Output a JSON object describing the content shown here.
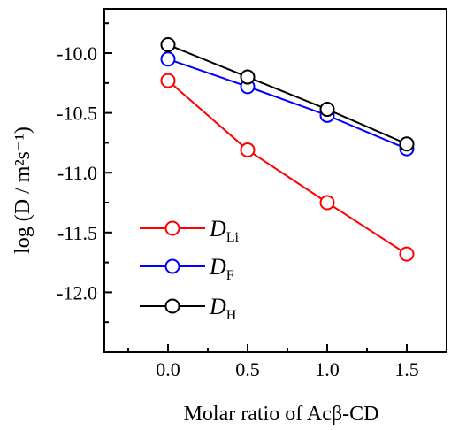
{
  "chart_data": {
    "type": "line",
    "title": "",
    "xlabel": "Molar ratio of Acβ-CD",
    "ylabel": "log (D / m²s⁻¹)",
    "xlim": [
      -0.4,
      1.75
    ],
    "ylim": [
      -12.5,
      -9.63
    ],
    "x_ticks": [
      "0.0",
      "0.5",
      "1.0",
      "1.5"
    ],
    "y_ticks": [
      "-10.0",
      "-10.5",
      "-11.0",
      "-11.5",
      "-12.0"
    ],
    "x": [
      0.0,
      0.5,
      1.0,
      1.5
    ],
    "series": [
      {
        "name": "D_Li",
        "label_main": "D",
        "label_sub": "Li",
        "color": "#ff0000",
        "values": [
          -10.23,
          -10.81,
          -11.25,
          -11.68
        ]
      },
      {
        "name": "D_F",
        "label_main": "D",
        "label_sub": "F",
        "color": "#0000ff",
        "values": [
          -10.05,
          -10.28,
          -10.52,
          -10.8
        ]
      },
      {
        "name": "D_H",
        "label_main": "D",
        "label_sub": "H",
        "color": "#000000",
        "values": [
          -9.93,
          -10.2,
          -10.47,
          -10.76
        ]
      }
    ],
    "legend_position": "bottom-left",
    "grid": false,
    "marker": "open-circle"
  }
}
